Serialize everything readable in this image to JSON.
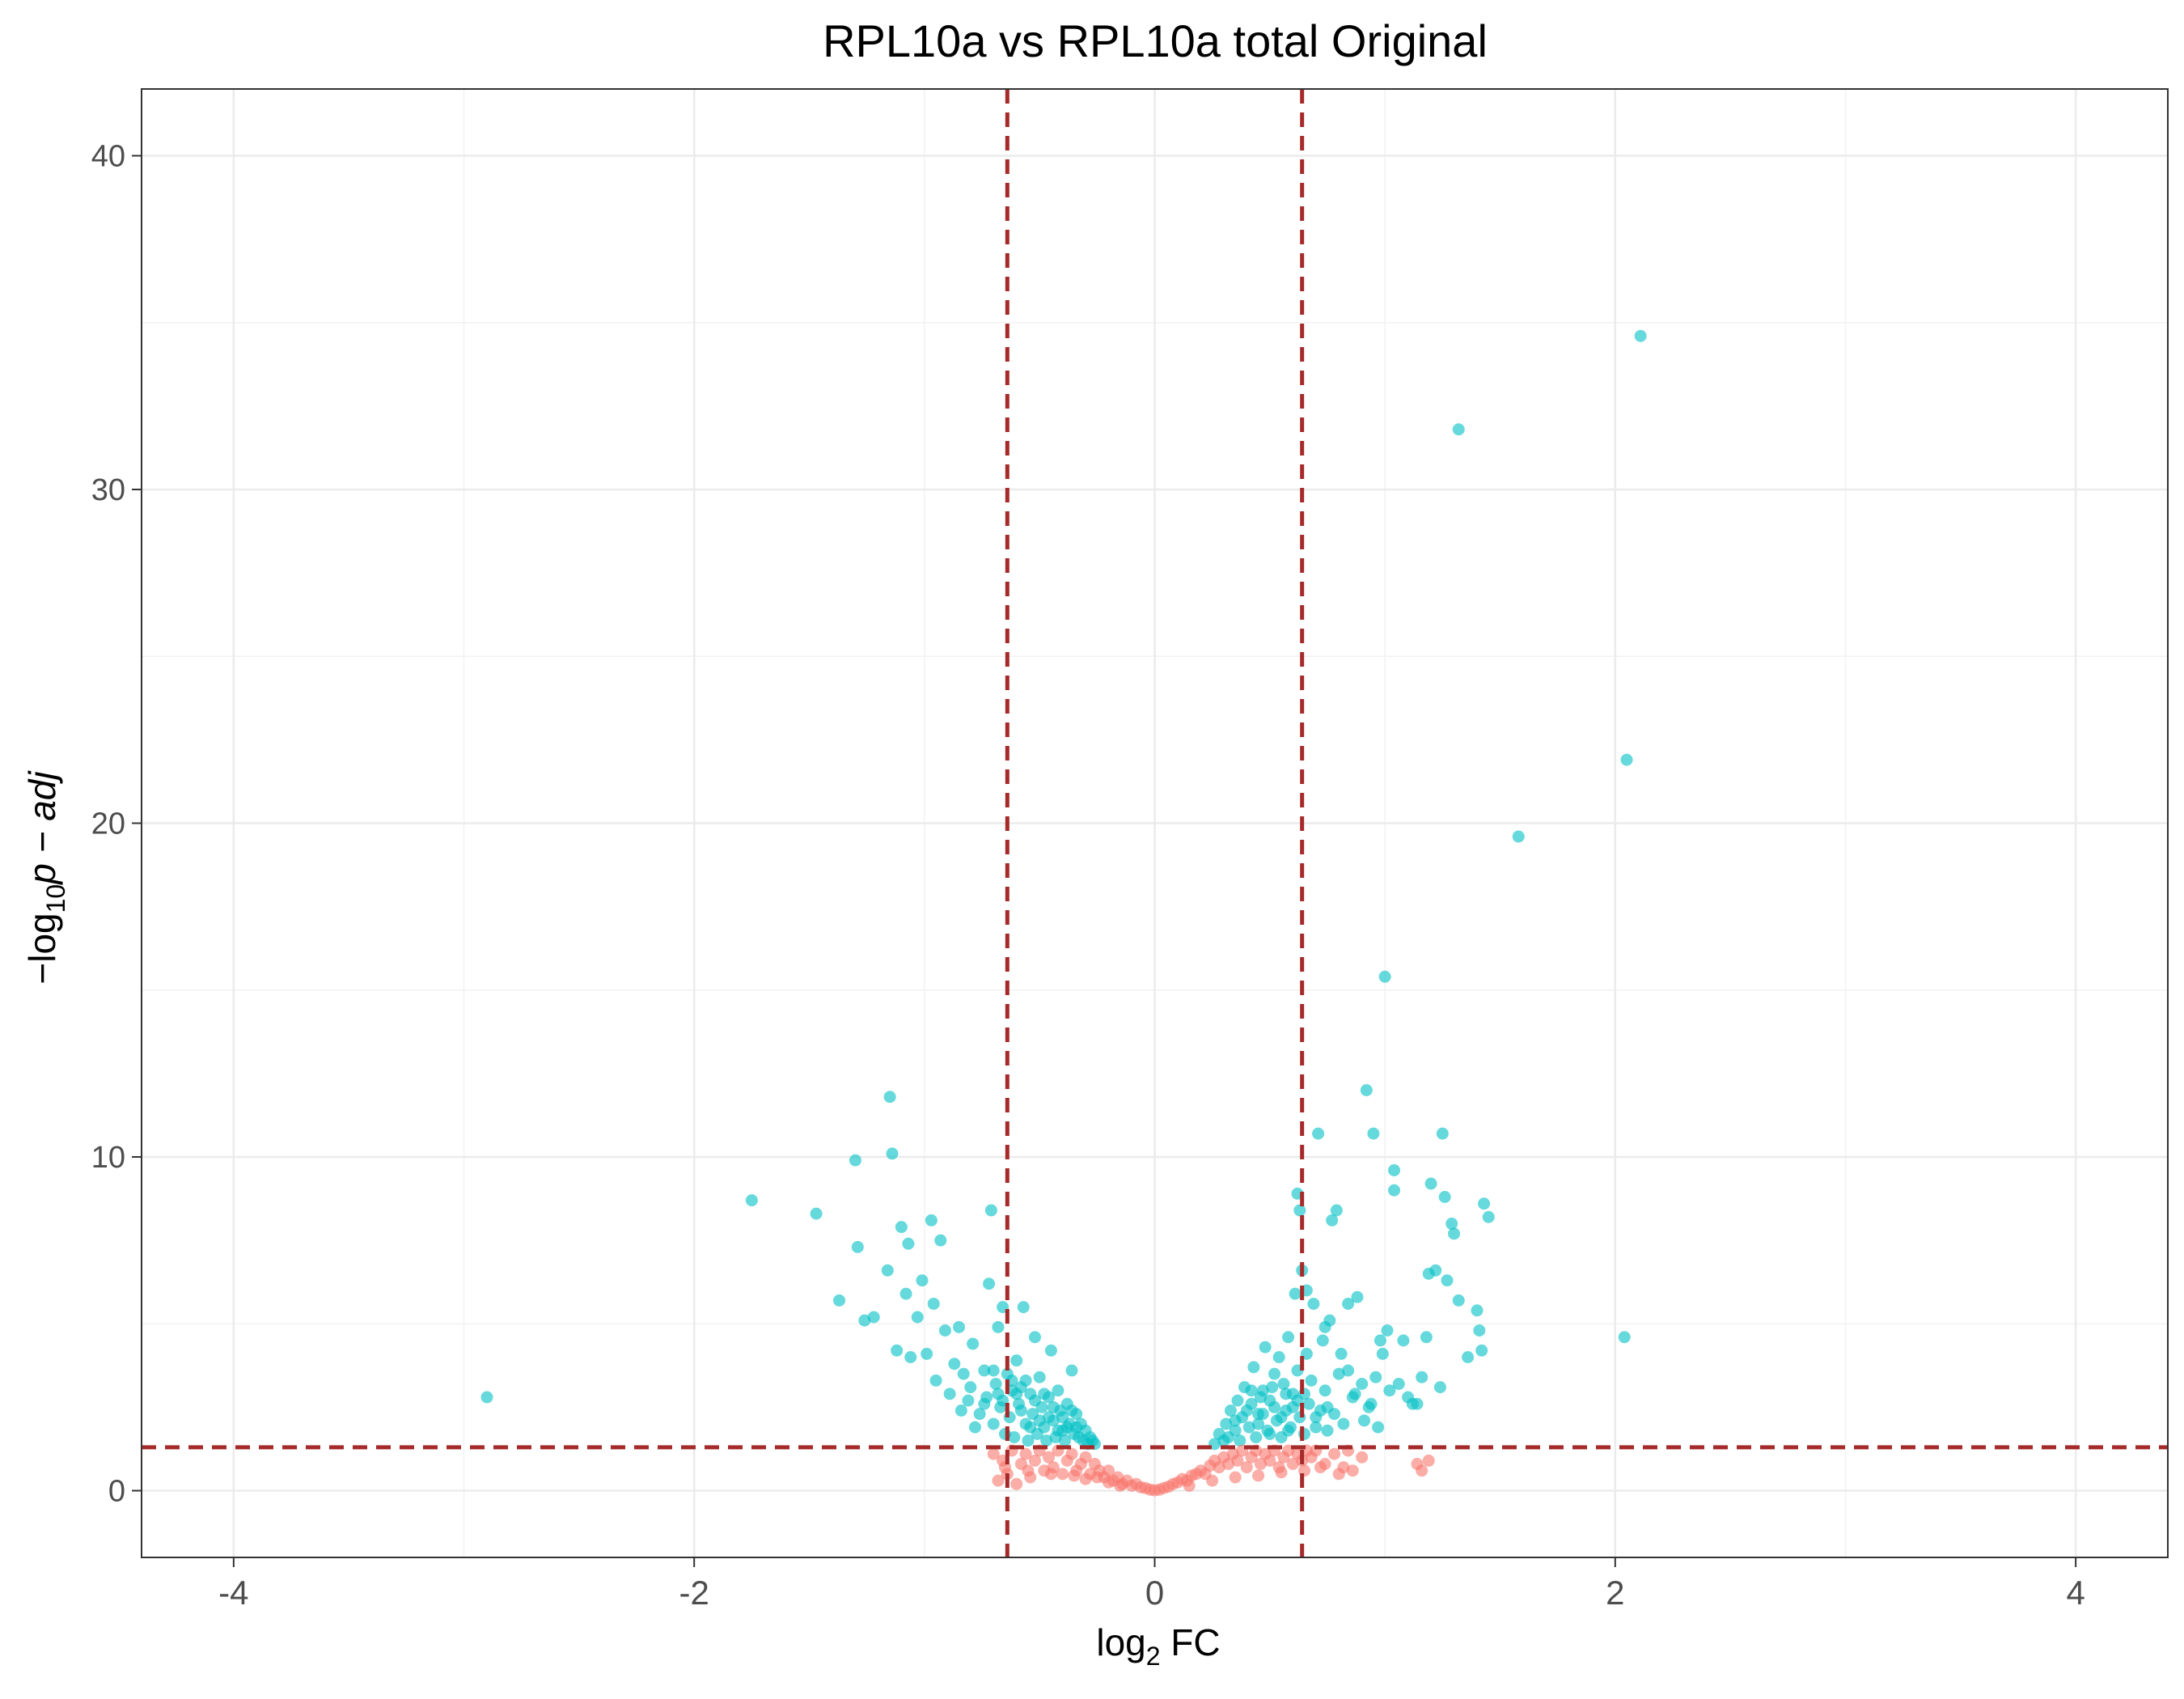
{
  "chart_data": {
    "type": "scatter",
    "title": "RPL10a vs RPL10a total Original",
    "xlabel": {
      "main": "log",
      "sub": "2",
      "rest": " FC"
    },
    "ylabel": {
      "pre": "−log",
      "sub": "10",
      "rest": "p − adj"
    },
    "xlim": [
      -4.4,
      4.4
    ],
    "ylim": [
      -2,
      42
    ],
    "x_ticks": [
      -4,
      -2,
      0,
      2,
      4
    ],
    "y_ticks": [
      0,
      10,
      20,
      30,
      40
    ],
    "x_tick_labels": [
      "-4",
      "-2",
      "0",
      "2",
      "4"
    ],
    "y_tick_labels": [
      "0",
      "10",
      "20",
      "30",
      "40"
    ],
    "grid": true,
    "vlines": [
      -0.64,
      0.64
    ],
    "hline": 1.3,
    "threshold_line_color": "#a52a2a",
    "colors": {
      "significant": "#00bfc4",
      "not_significant": "#f8766d"
    },
    "series": [
      {
        "color_key": "significant",
        "points": [
          [
            -2.9,
            2.8
          ],
          [
            -1.75,
            8.7
          ],
          [
            -1.47,
            8.3
          ],
          [
            -1.37,
            5.7
          ],
          [
            -1.3,
            9.9
          ],
          [
            -1.29,
            7.3
          ],
          [
            -1.26,
            5.1
          ],
          [
            -1.22,
            5.2
          ],
          [
            -1.16,
            6.6
          ],
          [
            -1.15,
            11.8
          ],
          [
            -1.14,
            10.1
          ],
          [
            -1.12,
            4.2
          ],
          [
            -1.1,
            7.9
          ],
          [
            -1.08,
            5.9
          ],
          [
            -1.07,
            7.4
          ],
          [
            -1.06,
            4.0
          ],
          [
            -1.03,
            5.2
          ],
          [
            -1.01,
            6.3
          ],
          [
            -0.99,
            4.1
          ],
          [
            -0.97,
            8.1
          ],
          [
            -0.96,
            5.6
          ],
          [
            -0.95,
            3.3
          ],
          [
            -0.93,
            7.5
          ],
          [
            -0.91,
            4.8
          ],
          [
            -0.89,
            2.9
          ],
          [
            -0.87,
            3.8
          ],
          [
            -0.85,
            4.9
          ],
          [
            -0.83,
            3.5
          ],
          [
            -0.81,
            2.7
          ],
          [
            -0.79,
            4.4
          ],
          [
            -0.78,
            1.9
          ],
          [
            -0.74,
            3.6
          ],
          [
            -0.72,
            6.2
          ],
          [
            -0.71,
            8.4
          ],
          [
            -0.68,
            4.9
          ],
          [
            -0.66,
            5.5
          ],
          [
            -0.62,
            3.0
          ],
          [
            -0.6,
            3.9
          ],
          [
            -0.57,
            5.5
          ],
          [
            -0.52,
            4.6
          ],
          [
            -0.45,
            4.2
          ],
          [
            -0.36,
            3.6
          ],
          [
            -0.76,
            2.3
          ],
          [
            -0.73,
            2.8
          ],
          [
            -0.7,
            2.0
          ],
          [
            -0.69,
            3.2
          ],
          [
            -0.67,
            2.5
          ],
          [
            -0.65,
            1.7
          ],
          [
            -0.64,
            3.5
          ],
          [
            -0.63,
            2.2
          ],
          [
            -0.61,
            1.6
          ],
          [
            -0.59,
            2.6
          ],
          [
            -0.58,
            3.1
          ],
          [
            -0.56,
            2.0
          ],
          [
            -0.55,
            1.5
          ],
          [
            -0.54,
            2.9
          ],
          [
            -0.53,
            2.3
          ],
          [
            -0.51,
            1.7
          ],
          [
            -0.5,
            3.4
          ],
          [
            -0.49,
            2.5
          ],
          [
            -0.48,
            1.9
          ],
          [
            -0.47,
            1.5
          ],
          [
            -0.46,
            2.8
          ],
          [
            -0.44,
            2.1
          ],
          [
            -0.43,
            1.6
          ],
          [
            -0.42,
            3.0
          ],
          [
            -0.41,
            2.4
          ],
          [
            -0.4,
            1.8
          ],
          [
            -0.39,
            1.5
          ],
          [
            -0.38,
            2.6
          ],
          [
            -0.37,
            2.0
          ],
          [
            -0.35,
            1.7
          ],
          [
            -0.34,
            2.3
          ],
          [
            -0.33,
            1.6
          ],
          [
            -0.32,
            2.0
          ],
          [
            -0.31,
            1.5
          ],
          [
            -0.3,
            1.8
          ],
          [
            -0.29,
            1.4
          ],
          [
            -0.28,
            1.6
          ],
          [
            -0.27,
            1.5
          ],
          [
            -0.26,
            1.4
          ],
          [
            -0.66,
            2.7
          ],
          [
            -0.62,
            3.3
          ],
          [
            -0.58,
            2.4
          ],
          [
            -0.54,
            1.9
          ],
          [
            -0.5,
            2.1
          ],
          [
            -0.46,
            2.2
          ],
          [
            -0.42,
            1.8
          ],
          [
            -0.38,
            1.9
          ],
          [
            -0.6,
            2.9
          ],
          [
            -0.56,
            3.3
          ],
          [
            -0.52,
            2.7
          ],
          [
            -0.48,
            2.9
          ],
          [
            -0.44,
            2.5
          ],
          [
            -0.4,
            2.2
          ],
          [
            -0.36,
            2.4
          ],
          [
            -0.34,
            1.9
          ],
          [
            -0.7,
            3.6
          ],
          [
            -0.68,
            2.9
          ],
          [
            -0.74,
            2.6
          ],
          [
            -0.8,
            3.1
          ],
          [
            -0.84,
            2.4
          ],
          [
            0.26,
            1.4
          ],
          [
            0.28,
            1.7
          ],
          [
            0.3,
            1.5
          ],
          [
            0.31,
            2.0
          ],
          [
            0.32,
            1.6
          ],
          [
            0.33,
            2.4
          ],
          [
            0.35,
            1.8
          ],
          [
            0.36,
            2.7
          ],
          [
            0.37,
            1.5
          ],
          [
            0.38,
            2.2
          ],
          [
            0.39,
            3.1
          ],
          [
            0.41,
            1.9
          ],
          [
            0.42,
            2.6
          ],
          [
            0.43,
            3.7
          ],
          [
            0.44,
            1.6
          ],
          [
            0.45,
            2.3
          ],
          [
            0.47,
            3.0
          ],
          [
            0.48,
            4.3
          ],
          [
            0.49,
            1.8
          ],
          [
            0.5,
            2.7
          ],
          [
            0.52,
            3.5
          ],
          [
            0.53,
            2.1
          ],
          [
            0.54,
            4.0
          ],
          [
            0.55,
            1.6
          ],
          [
            0.56,
            3.2
          ],
          [
            0.57,
            2.4
          ],
          [
            0.58,
            4.6
          ],
          [
            0.59,
            1.9
          ],
          [
            0.6,
            2.9
          ],
          [
            0.61,
            5.9
          ],
          [
            0.62,
            3.6
          ],
          [
            0.63,
            2.2
          ],
          [
            0.64,
            6.6
          ],
          [
            0.65,
            1.7
          ],
          [
            0.66,
            4.1
          ],
          [
            0.67,
            2.6
          ],
          [
            0.68,
            3.3
          ],
          [
            0.69,
            5.6
          ],
          [
            0.7,
            1.9
          ],
          [
            0.71,
            10.7
          ],
          [
            0.72,
            2.4
          ],
          [
            0.73,
            4.5
          ],
          [
            0.74,
            3.0
          ],
          [
            0.75,
            1.8
          ],
          [
            0.76,
            5.1
          ],
          [
            0.77,
            8.1
          ],
          [
            0.78,
            2.3
          ],
          [
            0.79,
            8.4
          ],
          [
            0.8,
            3.5
          ],
          [
            0.82,
            2.0
          ],
          [
            0.84,
            5.6
          ],
          [
            0.86,
            2.8
          ],
          [
            0.88,
            5.8
          ],
          [
            0.9,
            3.2
          ],
          [
            0.92,
            12.0
          ],
          [
            0.93,
            2.5
          ],
          [
            0.95,
            10.7
          ],
          [
            0.96,
            3.4
          ],
          [
            0.98,
            4.5
          ],
          [
            0.99,
            4.1
          ],
          [
            1.0,
            15.4
          ],
          [
            1.01,
            4.8
          ],
          [
            1.02,
            3.0
          ],
          [
            1.04,
            9.6
          ],
          [
            1.04,
            9.0
          ],
          [
            1.06,
            3.2
          ],
          [
            1.08,
            4.5
          ],
          [
            1.1,
            2.8
          ],
          [
            1.12,
            2.6
          ],
          [
            1.14,
            2.6
          ],
          [
            1.16,
            3.4
          ],
          [
            1.18,
            4.6
          ],
          [
            1.19,
            6.5
          ],
          [
            1.2,
            9.2
          ],
          [
            1.22,
            6.6
          ],
          [
            1.24,
            3.1
          ],
          [
            1.25,
            10.7
          ],
          [
            1.26,
            8.8
          ],
          [
            1.27,
            6.3
          ],
          [
            1.29,
            8.0
          ],
          [
            1.3,
            7.7
          ],
          [
            1.32,
            5.7
          ],
          [
            1.32,
            31.8
          ],
          [
            1.36,
            4.0
          ],
          [
            1.4,
            5.4
          ],
          [
            1.41,
            4.8
          ],
          [
            1.42,
            4.2
          ],
          [
            1.43,
            8.6
          ],
          [
            1.45,
            8.2
          ],
          [
            1.58,
            19.6
          ],
          [
            2.04,
            4.6
          ],
          [
            2.05,
            21.9
          ],
          [
            2.11,
            34.6
          ],
          [
            0.62,
            8.9
          ],
          [
            0.63,
            8.4
          ],
          [
            0.66,
            6.0
          ],
          [
            0.74,
            4.9
          ],
          [
            0.81,
            4.1
          ],
          [
            0.84,
            3.6
          ],
          [
            0.87,
            2.9
          ],
          [
            0.91,
            2.1
          ],
          [
            0.94,
            2.6
          ],
          [
            0.97,
            1.9
          ],
          [
            0.45,
            2.0
          ],
          [
            0.5,
            1.7
          ],
          [
            0.55,
            2.2
          ],
          [
            0.6,
            2.5
          ],
          [
            0.65,
            2.9
          ],
          [
            0.7,
            2.2
          ],
          [
            0.75,
            2.5
          ],
          [
            0.58,
            1.8
          ],
          [
            0.52,
            2.5
          ],
          [
            0.47,
            2.3
          ],
          [
            0.4,
            2.4
          ],
          [
            0.35,
            2.1
          ],
          [
            0.42,
            3.0
          ],
          [
            0.46,
            2.8
          ],
          [
            0.51,
            3.1
          ],
          [
            0.57,
            2.9
          ],
          [
            0.62,
            2.7
          ]
        ]
      },
      {
        "color_key": "not_significant",
        "points": [
          [
            -0.7,
            1.1
          ],
          [
            -0.68,
            0.3
          ],
          [
            -0.66,
            0.9
          ],
          [
            -0.64,
            0.5
          ],
          [
            -0.62,
            1.2
          ],
          [
            -0.6,
            0.2
          ],
          [
            -0.58,
            0.8
          ],
          [
            -0.56,
            1.1
          ],
          [
            -0.54,
            0.4
          ],
          [
            -0.52,
            0.9
          ],
          [
            -0.5,
            1.2
          ],
          [
            -0.48,
            0.6
          ],
          [
            -0.46,
            1.0
          ],
          [
            -0.44,
            0.7
          ],
          [
            -0.42,
            1.2
          ],
          [
            -0.4,
            0.5
          ],
          [
            -0.38,
            0.9
          ],
          [
            -0.36,
            1.1
          ],
          [
            -0.34,
            0.6
          ],
          [
            -0.32,
            0.8
          ],
          [
            -0.3,
            1.0
          ],
          [
            -0.28,
            0.5
          ],
          [
            -0.26,
            0.8
          ],
          [
            -0.24,
            0.6
          ],
          [
            -0.22,
            0.4
          ],
          [
            -0.2,
            0.6
          ],
          [
            -0.18,
            0.3
          ],
          [
            -0.16,
            0.4
          ],
          [
            -0.14,
            0.2
          ],
          [
            -0.12,
            0.3
          ],
          [
            -0.1,
            0.15
          ],
          [
            -0.08,
            0.2
          ],
          [
            -0.06,
            0.1
          ],
          [
            -0.04,
            0.08
          ],
          [
            -0.02,
            0.03
          ],
          [
            0.0,
            0.01
          ],
          [
            0.02,
            0.03
          ],
          [
            0.04,
            0.08
          ],
          [
            0.06,
            0.12
          ],
          [
            0.08,
            0.2
          ],
          [
            0.1,
            0.25
          ],
          [
            0.12,
            0.35
          ],
          [
            0.14,
            0.3
          ],
          [
            0.16,
            0.45
          ],
          [
            0.18,
            0.5
          ],
          [
            0.2,
            0.6
          ],
          [
            0.22,
            0.5
          ],
          [
            0.24,
            0.75
          ],
          [
            0.26,
            0.9
          ],
          [
            0.28,
            0.7
          ],
          [
            0.3,
            1.0
          ],
          [
            0.32,
            0.8
          ],
          [
            0.34,
            1.1
          ],
          [
            0.36,
            0.9
          ],
          [
            0.38,
            1.2
          ],
          [
            0.4,
            0.7
          ],
          [
            0.42,
            1.0
          ],
          [
            0.44,
            1.2
          ],
          [
            0.46,
            0.8
          ],
          [
            0.48,
            1.1
          ],
          [
            0.5,
            0.9
          ],
          [
            0.52,
            1.2
          ],
          [
            0.54,
            0.7
          ],
          [
            0.56,
            1.0
          ],
          [
            0.58,
            1.2
          ],
          [
            0.6,
            0.8
          ],
          [
            0.62,
            1.1
          ],
          [
            0.64,
            0.9
          ],
          [
            0.66,
            1.2
          ],
          [
            0.68,
            1.0
          ],
          [
            0.7,
            1.2
          ],
          [
            0.74,
            0.8
          ],
          [
            0.78,
            1.1
          ],
          [
            0.8,
            0.5
          ],
          [
            0.82,
            0.7
          ],
          [
            0.84,
            1.2
          ],
          [
            0.86,
            0.6
          ],
          [
            0.9,
            1.0
          ],
          [
            1.14,
            0.8
          ],
          [
            1.16,
            0.6
          ],
          [
            1.19,
            0.9
          ],
          [
            -0.25,
            0.4
          ],
          [
            -0.2,
            0.25
          ],
          [
            -0.15,
            0.15
          ],
          [
            -0.3,
            0.35
          ],
          [
            -0.35,
            0.45
          ],
          [
            -0.45,
            0.5
          ],
          [
            -0.55,
            0.6
          ],
          [
            -0.65,
            0.7
          ],
          [
            0.15,
            0.15
          ],
          [
            0.25,
            0.3
          ],
          [
            0.35,
            0.4
          ],
          [
            0.45,
            0.45
          ],
          [
            0.55,
            0.55
          ],
          [
            0.65,
            0.6
          ],
          [
            0.72,
            0.7
          ]
        ]
      }
    ]
  }
}
